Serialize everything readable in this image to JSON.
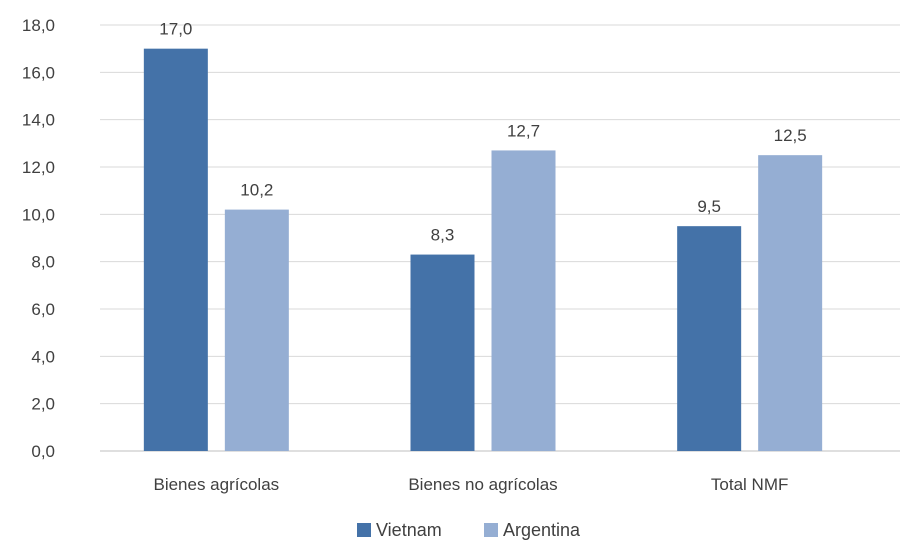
{
  "chart_data": {
    "type": "bar",
    "categories": [
      "Bienes agrícolas",
      "Bienes no agrícolas",
      "Total NMF"
    ],
    "series": [
      {
        "name": "Vietnam",
        "values": [
          17.0,
          8.3,
          9.5
        ],
        "color": "#4472a8"
      },
      {
        "name": "Argentina",
        "values": [
          10.2,
          12.7,
          12.5
        ],
        "color": "#95aed3"
      }
    ],
    "data_labels": [
      [
        "17,0",
        "8,3",
        "9,5"
      ],
      [
        "10,2",
        "12,7",
        "12,5"
      ]
    ],
    "yticks": [
      "0,0",
      "2,0",
      "4,0",
      "6,0",
      "8,0",
      "10,0",
      "12,0",
      "14,0",
      "16,0",
      "18,0"
    ],
    "ylim": [
      0,
      18
    ],
    "title": "",
    "xlabel": "",
    "ylabel": "",
    "grid": true,
    "legend_position": "bottom"
  }
}
